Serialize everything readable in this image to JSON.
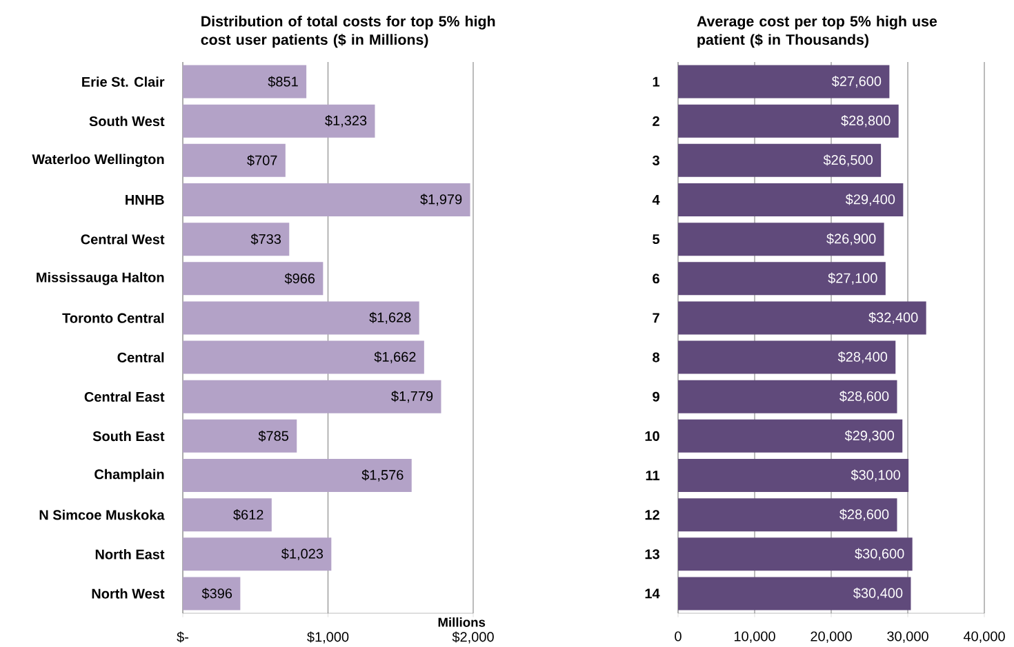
{
  "chart_data": [
    {
      "type": "bar",
      "orientation": "horizontal",
      "title": "Distribution of total costs for top 5% high cost user patients ($ in Millions)",
      "xlabel": "Millions",
      "categories": [
        "Erie St. Clair",
        "South West",
        "Waterloo Wellington",
        "HNHB",
        "Central West",
        "Mississauga  Halton",
        "Toronto Central",
        "Central",
        "Central East",
        "South East",
        "Champlain",
        "N Simcoe  Muskoka",
        "North East",
        "North West"
      ],
      "values": [
        851,
        1323,
        707,
        1979,
        733,
        966,
        1628,
        1662,
        1779,
        785,
        1576,
        612,
        1023,
        396
      ],
      "value_labels": [
        "$851",
        "$1,323",
        "$707",
        "$1,979",
        "$733",
        "$966",
        "$1,628",
        "$1,662",
        "$1,779",
        "$785",
        "$1,576",
        "$612",
        "$1,023",
        "$396"
      ],
      "color": "#b3a2c7",
      "xlim": [
        0,
        2000
      ],
      "xticks": [
        {
          "value": 0,
          "label": "$-"
        },
        {
          "value": 1000,
          "label": "$1,000"
        },
        {
          "value": 2000,
          "label": "$2,000"
        }
      ],
      "grid": "x"
    },
    {
      "type": "bar",
      "orientation": "horizontal",
      "title": "Average cost per top 5% high use patient ($ in Thousands)",
      "categories": [
        "1",
        "2",
        "3",
        "4",
        "5",
        "6",
        "7",
        "8",
        "9",
        "10",
        "11",
        "12",
        "13",
        "14"
      ],
      "values": [
        27600,
        28800,
        26500,
        29400,
        26900,
        27100,
        32400,
        28400,
        28600,
        29300,
        30100,
        28600,
        30600,
        30400
      ],
      "value_labels": [
        "$27,600",
        "$28,800",
        "$26,500",
        "$29,400",
        "$26,900",
        "$27,100",
        "$32,400",
        "$28,400",
        "$28,600",
        "$29,300",
        "$30,100",
        "$28,600",
        "$30,600",
        "$30,400"
      ],
      "color": "#604a7b",
      "xlim": [
        0,
        40000
      ],
      "xticks": [
        0,
        {
          "value": 10000,
          "label": "10,000"
        },
        {
          "value": 20000,
          "label": "20,000"
        },
        {
          "value": 30000,
          "label": "30,000"
        },
        {
          "value": 40000,
          "label": "40,000"
        }
      ],
      "grid": "x"
    }
  ]
}
